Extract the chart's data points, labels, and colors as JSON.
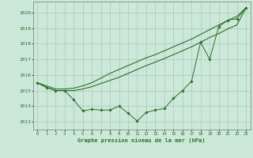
{
  "xlabel": "Graphe pression niveau de la mer (hPa)",
  "background_color": "#cce8d8",
  "grid_color": "#aac8b8",
  "line_color": "#2d6e2d",
  "marker_color": "#2d6e2d",
  "xlim": [
    -0.5,
    23.5
  ],
  "ylim": [
    1012.5,
    1020.7
  ],
  "yticks": [
    1013,
    1014,
    1015,
    1016,
    1017,
    1018,
    1019,
    1020
  ],
  "xticks": [
    0,
    1,
    2,
    3,
    4,
    5,
    6,
    7,
    8,
    9,
    10,
    11,
    12,
    13,
    14,
    15,
    16,
    17,
    18,
    19,
    20,
    21,
    22,
    23
  ],
  "series1_markers": [
    1015.5,
    1015.2,
    1015.0,
    1015.0,
    1014.4,
    1013.7,
    1013.8,
    1013.75,
    1013.75,
    1014.0,
    1013.55,
    1013.05,
    1013.6,
    1013.75,
    1013.85,
    1014.5,
    1015.0,
    1015.6,
    1018.1,
    1017.0,
    1019.1,
    1019.5,
    1019.6,
    1020.3
  ],
  "series2_upper": [
    1015.5,
    1015.3,
    1015.1,
    1015.1,
    1015.15,
    1015.3,
    1015.5,
    1015.8,
    1016.1,
    1016.35,
    1016.6,
    1016.85,
    1017.1,
    1017.3,
    1017.55,
    1017.8,
    1018.05,
    1018.3,
    1018.6,
    1018.9,
    1019.2,
    1019.5,
    1019.75,
    1020.3
  ],
  "series3_lower": [
    1015.5,
    1015.2,
    1015.0,
    1015.0,
    1015.0,
    1015.1,
    1015.25,
    1015.45,
    1015.65,
    1015.85,
    1016.1,
    1016.35,
    1016.6,
    1016.82,
    1017.05,
    1017.3,
    1017.55,
    1017.8,
    1018.1,
    1018.4,
    1018.65,
    1018.95,
    1019.2,
    1020.3
  ]
}
